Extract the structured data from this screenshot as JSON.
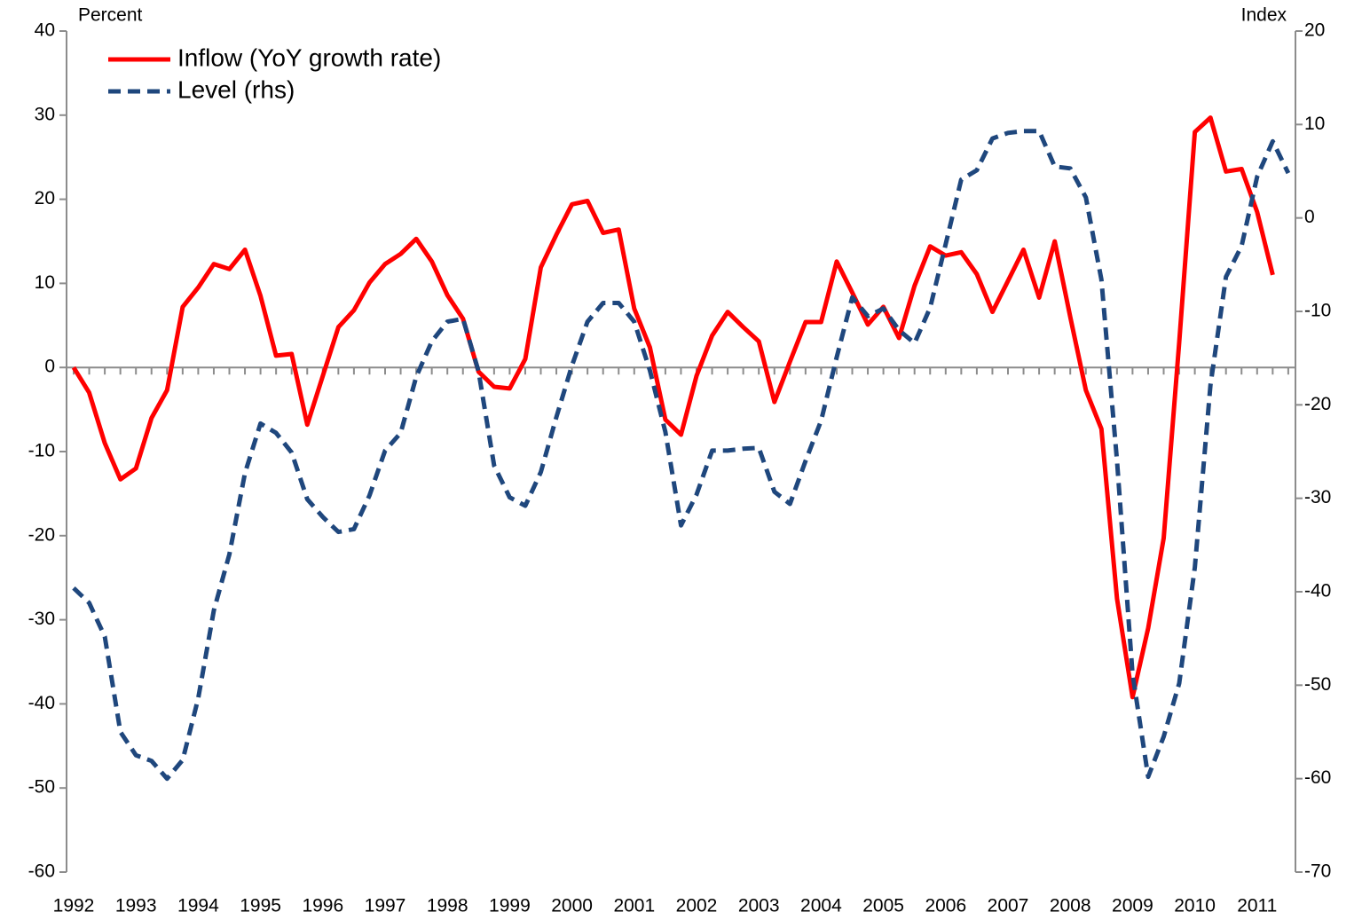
{
  "chart_data": {
    "type": "line",
    "y_label": "Percent",
    "y2_label": "Index",
    "categories": [
      "1992",
      null,
      null,
      null,
      "1993",
      null,
      null,
      null,
      "1994",
      null,
      null,
      null,
      "1995",
      null,
      null,
      null,
      "1996",
      null,
      null,
      null,
      "1997",
      null,
      null,
      null,
      "1998",
      null,
      null,
      null,
      "1999",
      null,
      null,
      null,
      "2000",
      null,
      null,
      null,
      "2001",
      null,
      null,
      null,
      "2002",
      null,
      null,
      null,
      "2003",
      null,
      null,
      null,
      "2004",
      null,
      null,
      null,
      "2005",
      null,
      null,
      null,
      "2006",
      null,
      null,
      null,
      "2007",
      null,
      null,
      null,
      "2008",
      null,
      null,
      null,
      "2009",
      null,
      null,
      null,
      "2010",
      null,
      null,
      null,
      "2011",
      null,
      null
    ],
    "series": [
      {
        "name": "Inflow (YoY growth rate)",
        "color": "#ff0000",
        "style": "solid",
        "axis": "y",
        "values": [
          0,
          -3,
          -9,
          -13.3,
          -12,
          -6,
          -2.7,
          7.2,
          9.5,
          12.3,
          11.7,
          14,
          8.5,
          1.4,
          1.6,
          -6.8,
          -1,
          4.8,
          6.8,
          10.1,
          12.3,
          13.5,
          15.3,
          12.6,
          8.6,
          5.8,
          -0.5,
          -2.3,
          -2.5,
          1,
          11.9,
          15.8,
          19.4,
          19.8,
          16,
          16.4,
          7,
          2.4,
          -6.2,
          -8,
          -1,
          3.8,
          6.6,
          4.8,
          3.1,
          -4.1,
          0.7,
          5.4,
          5.4,
          12.6,
          8.9,
          5.1,
          7.2,
          3.5,
          9.7,
          14.4,
          13.3,
          13.7,
          11.1,
          6.6,
          10.3,
          14,
          8.3,
          15,
          6,
          -2.7,
          -7.3,
          -27.5,
          -39.2,
          -31,
          -20.3,
          3,
          28,
          29.7,
          23.3,
          23.6,
          18.5,
          11,
          null
        ]
      },
      {
        "name": "Level (rhs)",
        "color": "#1f477d",
        "style": "dashed",
        "axis": "y2",
        "values": [
          -39.6,
          -41.2,
          -44.8,
          -55,
          -57.5,
          -58.1,
          -60,
          -58,
          -51.4,
          -42,
          -36,
          -27.3,
          -22,
          -23,
          -25.1,
          -30.1,
          -32,
          -33.6,
          -33.3,
          -29.7,
          -24.9,
          -23,
          -17,
          -13.2,
          -11.1,
          -10.8,
          -16.4,
          -26.5,
          -29.9,
          -30.8,
          -27.2,
          -21.3,
          -15.8,
          -11.1,
          -9.1,
          -9.1,
          -11.1,
          -16.3,
          -22.9,
          -32.9,
          -29.6,
          -24.9,
          -24.9,
          -24.7,
          -24.6,
          -29.3,
          -30.6,
          -26,
          -21.7,
          -14.9,
          -8.5,
          -10.5,
          -9.7,
          -12,
          -13.4,
          -9.6,
          -2.8,
          4.1,
          5.1,
          8.5,
          9.1,
          9.3,
          9.3,
          5.5,
          5.3,
          2.2,
          -6.6,
          -26,
          -48.8,
          -59.8,
          -55.5,
          -49.8,
          -37.4,
          -17.9,
          -6.3,
          -3,
          4.4,
          8.2,
          4.8
        ]
      }
    ],
    "ylim": [
      -60,
      40
    ],
    "yticks": [
      -60,
      -50,
      -40,
      -30,
      -20,
      -10,
      0,
      10,
      20,
      30,
      40
    ],
    "y2lim": [
      -70,
      20
    ],
    "y2ticks": [
      -70,
      -60,
      -50,
      -40,
      -30,
      -20,
      -10,
      0,
      10,
      20
    ],
    "legend": "upper left"
  }
}
